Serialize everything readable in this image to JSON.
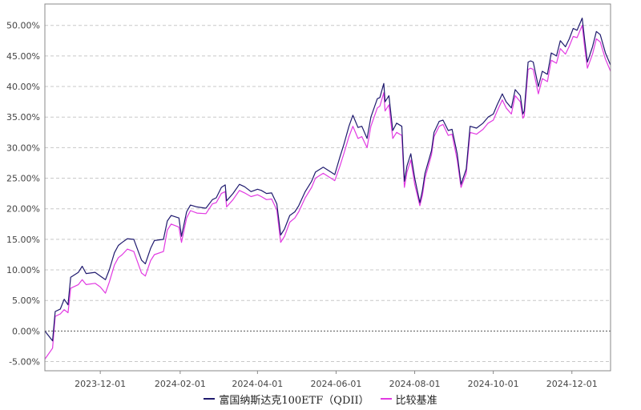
{
  "chart_data": {
    "type": "line",
    "title": "",
    "xlabel": "",
    "ylabel": "",
    "y_unit": "%",
    "ylim": [
      -6.5,
      53.5
    ],
    "xlim": [
      "2023-10-19",
      "2024-12-31"
    ],
    "y_ticks": [
      -5,
      0,
      5,
      10,
      15,
      20,
      25,
      30,
      35,
      40,
      45,
      50
    ],
    "y_tick_labels": [
      "-5.00%",
      "0.00%",
      "5.00%",
      "10.00%",
      "15.00%",
      "20.00%",
      "25.00%",
      "30.00%",
      "35.00%",
      "40.00%",
      "45.00%",
      "50.00%"
    ],
    "x_ticks": [
      "2023-12-01",
      "2024-02-01",
      "2024-04-01",
      "2024-06-01",
      "2024-08-01",
      "2024-10-01",
      "2024-12-01"
    ],
    "grid": "horizontal dashed",
    "legend_position": "bottom-center",
    "series": [
      {
        "name": "富国纳斯达克100ETF（QDII）",
        "color": "#1f1a6e",
        "points": [
          [
            "2023-10-19",
            0.0
          ],
          [
            "2023-10-25",
            -1.6
          ],
          [
            "2023-10-27",
            3.2
          ],
          [
            "2023-10-31",
            3.6
          ],
          [
            "2023-11-03",
            5.2
          ],
          [
            "2023-11-06",
            4.3
          ],
          [
            "2023-11-08",
            8.8
          ],
          [
            "2023-11-14",
            9.6
          ],
          [
            "2023-11-17",
            10.6
          ],
          [
            "2023-11-20",
            9.4
          ],
          [
            "2023-11-27",
            9.6
          ],
          [
            "2023-12-01",
            9.0
          ],
          [
            "2023-12-05",
            8.4
          ],
          [
            "2023-12-08",
            10.0
          ],
          [
            "2023-12-12",
            12.8
          ],
          [
            "2023-12-15",
            14.0
          ],
          [
            "2023-12-18",
            14.5
          ],
          [
            "2023-12-22",
            15.1
          ],
          [
            "2023-12-27",
            15.0
          ],
          [
            "2024-01-02",
            11.6
          ],
          [
            "2024-01-05",
            11.0
          ],
          [
            "2024-01-09",
            13.5
          ],
          [
            "2024-01-12",
            14.8
          ],
          [
            "2024-01-19",
            15.0
          ],
          [
            "2024-01-22",
            18.0
          ],
          [
            "2024-01-25",
            18.9
          ],
          [
            "2024-01-31",
            18.5
          ],
          [
            "2024-02-02",
            15.5
          ],
          [
            "2024-02-06",
            19.5
          ],
          [
            "2024-02-09",
            20.6
          ],
          [
            "2024-02-14",
            20.3
          ],
          [
            "2024-02-21",
            20.1
          ],
          [
            "2024-02-26",
            21.5
          ],
          [
            "2024-02-29",
            21.8
          ],
          [
            "2024-03-04",
            23.5
          ],
          [
            "2024-03-07",
            23.9
          ],
          [
            "2024-03-08",
            21.3
          ],
          [
            "2024-03-13",
            22.5
          ],
          [
            "2024-03-18",
            24.0
          ],
          [
            "2024-03-22",
            23.6
          ],
          [
            "2024-03-27",
            22.8
          ],
          [
            "2024-04-01",
            23.2
          ],
          [
            "2024-04-04",
            23.0
          ],
          [
            "2024-04-08",
            22.5
          ],
          [
            "2024-04-12",
            22.6
          ],
          [
            "2024-04-16",
            20.8
          ],
          [
            "2024-04-19",
            15.7
          ],
          [
            "2024-04-22",
            16.7
          ],
          [
            "2024-04-26",
            18.9
          ],
          [
            "2024-04-30",
            19.5
          ],
          [
            "2024-05-03",
            20.5
          ],
          [
            "2024-05-08",
            22.8
          ],
          [
            "2024-05-13",
            24.5
          ],
          [
            "2024-05-16",
            26.0
          ],
          [
            "2024-05-22",
            26.8
          ],
          [
            "2024-05-28",
            26.0
          ],
          [
            "2024-05-31",
            25.6
          ],
          [
            "2024-06-04",
            28.5
          ],
          [
            "2024-06-07",
            30.5
          ],
          [
            "2024-06-11",
            33.5
          ],
          [
            "2024-06-14",
            35.3
          ],
          [
            "2024-06-18",
            33.3
          ],
          [
            "2024-06-21",
            33.5
          ],
          [
            "2024-06-25",
            31.5
          ],
          [
            "2024-06-28",
            35.0
          ],
          [
            "2024-07-03",
            38.0
          ],
          [
            "2024-07-05",
            38.2
          ],
          [
            "2024-07-08",
            40.5
          ],
          [
            "2024-07-09",
            37.5
          ],
          [
            "2024-07-12",
            38.5
          ],
          [
            "2024-07-15",
            32.8
          ],
          [
            "2024-07-18",
            34.0
          ],
          [
            "2024-07-22",
            33.5
          ],
          [
            "2024-07-24",
            24.5
          ],
          [
            "2024-07-26",
            27.0
          ],
          [
            "2024-07-29",
            29.0
          ],
          [
            "2024-08-01",
            25.0
          ],
          [
            "2024-08-05",
            21.0
          ],
          [
            "2024-08-07",
            23.0
          ],
          [
            "2024-08-09",
            25.8
          ],
          [
            "2024-08-14",
            29.5
          ],
          [
            "2024-08-16",
            32.5
          ],
          [
            "2024-08-20",
            34.3
          ],
          [
            "2024-08-23",
            34.5
          ],
          [
            "2024-08-27",
            32.8
          ],
          [
            "2024-08-30",
            33.0
          ],
          [
            "2024-09-03",
            29.0
          ],
          [
            "2024-09-06",
            24.0
          ],
          [
            "2024-09-10",
            26.5
          ],
          [
            "2024-09-13",
            33.5
          ],
          [
            "2024-09-18",
            33.2
          ],
          [
            "2024-09-23",
            34.0
          ],
          [
            "2024-09-27",
            35.0
          ],
          [
            "2024-10-01",
            35.5
          ],
          [
            "2024-10-04",
            37.0
          ],
          [
            "2024-10-08",
            38.8
          ],
          [
            "2024-10-11",
            37.5
          ],
          [
            "2024-10-15",
            36.5
          ],
          [
            "2024-10-18",
            39.5
          ],
          [
            "2024-10-22",
            38.5
          ],
          [
            "2024-10-24",
            35.5
          ],
          [
            "2024-10-25",
            36.0
          ],
          [
            "2024-10-28",
            44.0
          ],
          [
            "2024-10-30",
            44.2
          ],
          [
            "2024-11-01",
            44.0
          ],
          [
            "2024-11-05",
            40.0
          ],
          [
            "2024-11-08",
            42.5
          ],
          [
            "2024-11-12",
            42.0
          ],
          [
            "2024-11-15",
            45.5
          ],
          [
            "2024-11-19",
            45.0
          ],
          [
            "2024-11-22",
            47.5
          ],
          [
            "2024-11-26",
            46.5
          ],
          [
            "2024-11-29",
            47.8
          ],
          [
            "2024-12-02",
            49.5
          ],
          [
            "2024-12-05",
            49.2
          ],
          [
            "2024-12-09",
            51.2
          ],
          [
            "2024-12-11",
            47.5
          ],
          [
            "2024-12-13",
            44.0
          ],
          [
            "2024-12-17",
            46.5
          ],
          [
            "2024-12-20",
            49.0
          ],
          [
            "2024-12-23",
            48.5
          ],
          [
            "2024-12-27",
            45.5
          ],
          [
            "2024-12-31",
            43.5
          ]
        ]
      },
      {
        "name": "比较基准",
        "color": "#e23ae2",
        "points": [
          [
            "2023-10-19",
            -4.6
          ],
          [
            "2023-10-25",
            -2.8
          ],
          [
            "2023-10-27",
            2.4
          ],
          [
            "2023-10-31",
            2.8
          ],
          [
            "2023-11-03",
            3.5
          ],
          [
            "2023-11-06",
            3.0
          ],
          [
            "2023-11-08",
            7.0
          ],
          [
            "2023-11-14",
            7.6
          ],
          [
            "2023-11-17",
            8.4
          ],
          [
            "2023-11-20",
            7.6
          ],
          [
            "2023-11-27",
            7.8
          ],
          [
            "2023-12-01",
            7.2
          ],
          [
            "2023-12-05",
            6.2
          ],
          [
            "2023-12-08",
            8.0
          ],
          [
            "2023-12-12",
            10.8
          ],
          [
            "2023-12-15",
            12.0
          ],
          [
            "2023-12-18",
            12.5
          ],
          [
            "2023-12-22",
            13.4
          ],
          [
            "2023-12-27",
            13.0
          ],
          [
            "2024-01-02",
            9.5
          ],
          [
            "2024-01-05",
            9.0
          ],
          [
            "2024-01-09",
            11.5
          ],
          [
            "2024-01-12",
            12.5
          ],
          [
            "2024-01-19",
            13.0
          ],
          [
            "2024-01-22",
            16.5
          ],
          [
            "2024-01-25",
            17.5
          ],
          [
            "2024-01-31",
            17.0
          ],
          [
            "2024-02-02",
            14.5
          ],
          [
            "2024-02-06",
            18.5
          ],
          [
            "2024-02-09",
            19.7
          ],
          [
            "2024-02-14",
            19.3
          ],
          [
            "2024-02-21",
            19.2
          ],
          [
            "2024-02-26",
            20.8
          ],
          [
            "2024-02-29",
            21.0
          ],
          [
            "2024-03-04",
            22.5
          ],
          [
            "2024-03-07",
            22.8
          ],
          [
            "2024-03-08",
            20.3
          ],
          [
            "2024-03-13",
            21.5
          ],
          [
            "2024-03-18",
            23.0
          ],
          [
            "2024-03-22",
            22.6
          ],
          [
            "2024-03-27",
            22.0
          ],
          [
            "2024-04-01",
            22.3
          ],
          [
            "2024-04-04",
            22.0
          ],
          [
            "2024-04-08",
            21.5
          ],
          [
            "2024-04-12",
            21.6
          ],
          [
            "2024-04-16",
            19.8
          ],
          [
            "2024-04-19",
            14.5
          ],
          [
            "2024-04-22",
            15.5
          ],
          [
            "2024-04-26",
            17.8
          ],
          [
            "2024-04-30",
            18.5
          ],
          [
            "2024-05-03",
            19.5
          ],
          [
            "2024-05-08",
            21.8
          ],
          [
            "2024-05-13",
            23.5
          ],
          [
            "2024-05-16",
            25.0
          ],
          [
            "2024-05-22",
            25.8
          ],
          [
            "2024-05-28",
            25.0
          ],
          [
            "2024-05-31",
            24.6
          ],
          [
            "2024-06-04",
            27.0
          ],
          [
            "2024-06-07",
            29.0
          ],
          [
            "2024-06-11",
            31.8
          ],
          [
            "2024-06-14",
            33.5
          ],
          [
            "2024-06-18",
            31.5
          ],
          [
            "2024-06-21",
            31.8
          ],
          [
            "2024-06-25",
            30.0
          ],
          [
            "2024-06-28",
            33.5
          ],
          [
            "2024-07-03",
            36.5
          ],
          [
            "2024-07-05",
            36.8
          ],
          [
            "2024-07-08",
            39.0
          ],
          [
            "2024-07-09",
            36.0
          ],
          [
            "2024-07-12",
            37.0
          ],
          [
            "2024-07-15",
            31.5
          ],
          [
            "2024-07-18",
            32.5
          ],
          [
            "2024-07-22",
            32.0
          ],
          [
            "2024-07-24",
            23.5
          ],
          [
            "2024-07-26",
            26.0
          ],
          [
            "2024-07-29",
            28.0
          ],
          [
            "2024-08-01",
            24.0
          ],
          [
            "2024-08-05",
            20.5
          ],
          [
            "2024-08-07",
            22.2
          ],
          [
            "2024-08-09",
            25.0
          ],
          [
            "2024-08-14",
            28.8
          ],
          [
            "2024-08-16",
            31.8
          ],
          [
            "2024-08-20",
            33.5
          ],
          [
            "2024-08-23",
            33.8
          ],
          [
            "2024-08-27",
            32.0
          ],
          [
            "2024-08-30",
            32.2
          ],
          [
            "2024-09-03",
            28.0
          ],
          [
            "2024-09-06",
            23.5
          ],
          [
            "2024-09-10",
            25.8
          ],
          [
            "2024-09-13",
            32.5
          ],
          [
            "2024-09-18",
            32.2
          ],
          [
            "2024-09-23",
            33.0
          ],
          [
            "2024-09-27",
            34.0
          ],
          [
            "2024-10-01",
            34.5
          ],
          [
            "2024-10-04",
            36.0
          ],
          [
            "2024-10-08",
            37.8
          ],
          [
            "2024-10-11",
            36.5
          ],
          [
            "2024-10-15",
            35.5
          ],
          [
            "2024-10-18",
            38.5
          ],
          [
            "2024-10-22",
            37.5
          ],
          [
            "2024-10-24",
            34.8
          ],
          [
            "2024-10-25",
            35.2
          ],
          [
            "2024-10-28",
            42.8
          ],
          [
            "2024-10-30",
            43.0
          ],
          [
            "2024-11-01",
            42.8
          ],
          [
            "2024-11-05",
            38.8
          ],
          [
            "2024-11-08",
            41.3
          ],
          [
            "2024-11-12",
            40.8
          ],
          [
            "2024-11-15",
            44.3
          ],
          [
            "2024-11-19",
            43.8
          ],
          [
            "2024-11-22",
            46.2
          ],
          [
            "2024-11-26",
            45.3
          ],
          [
            "2024-11-29",
            46.6
          ],
          [
            "2024-12-02",
            48.2
          ],
          [
            "2024-12-05",
            48.0
          ],
          [
            "2024-12-09",
            50.0
          ],
          [
            "2024-12-11",
            46.3
          ],
          [
            "2024-12-13",
            43.0
          ],
          [
            "2024-12-17",
            45.3
          ],
          [
            "2024-12-20",
            47.8
          ],
          [
            "2024-12-23",
            47.3
          ],
          [
            "2024-12-27",
            44.5
          ],
          [
            "2024-12-31",
            42.5
          ]
        ]
      }
    ]
  }
}
